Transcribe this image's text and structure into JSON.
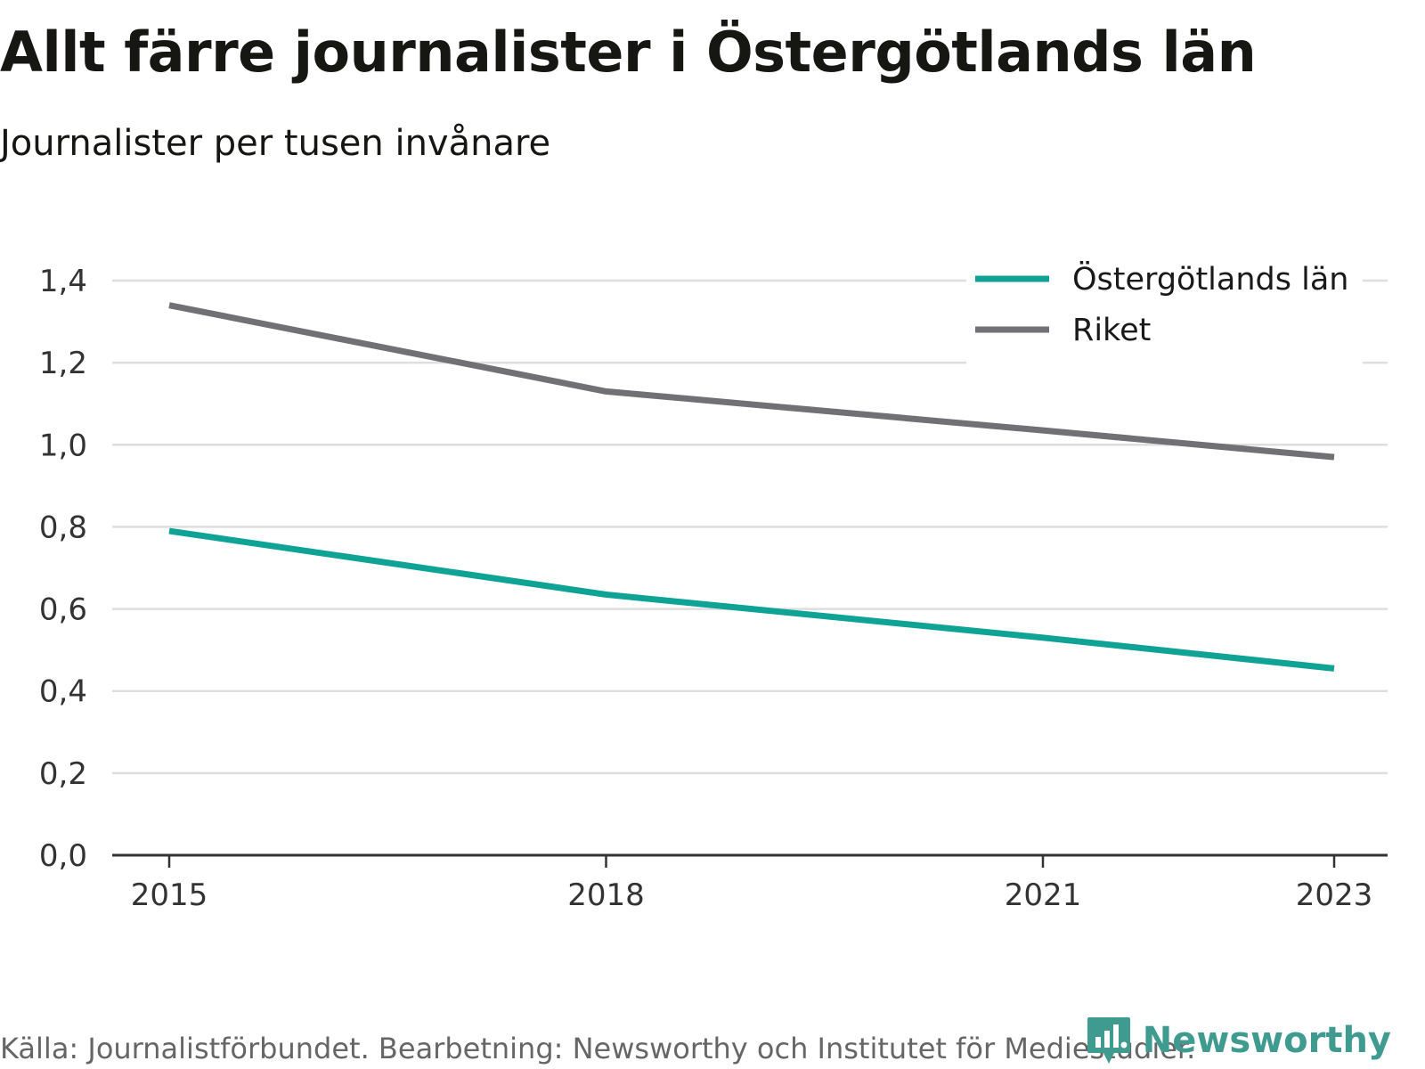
{
  "chart_data": {
    "type": "line",
    "title": "Allt färre journalister i Östergötlands län",
    "subtitle": "Journalister per tusen invånare",
    "x": [
      2015,
      2018,
      2021,
      2023
    ],
    "x_tick_labels": [
      "2015",
      "2018",
      "2021",
      "2023"
    ],
    "ylim": [
      0,
      1.4
    ],
    "y_ticks": [
      0,
      0.2,
      0.4,
      0.6,
      0.8,
      1.0,
      1.2,
      1.4
    ],
    "y_tick_labels": [
      "0,0",
      "0,2",
      "0,4",
      "0,6",
      "0,8",
      "1,0",
      "1,2",
      "1,4"
    ],
    "grid": true,
    "legend_position": "top-right",
    "series": [
      {
        "name": "Östergötlands län",
        "color": "#0fa396",
        "values": [
          0.79,
          0.635,
          0.53,
          0.455
        ]
      },
      {
        "name": "Riket",
        "color": "#717075",
        "values": [
          1.34,
          1.13,
          1.035,
          0.97
        ]
      }
    ],
    "source": "Källa: Journalistförbundet. Bearbetning: Newsworthy och Institutet för Mediestudier."
  },
  "brand": {
    "name": "Newsworthy",
    "icon": "newsworthy-logo-icon",
    "color": "#3f9a90"
  }
}
